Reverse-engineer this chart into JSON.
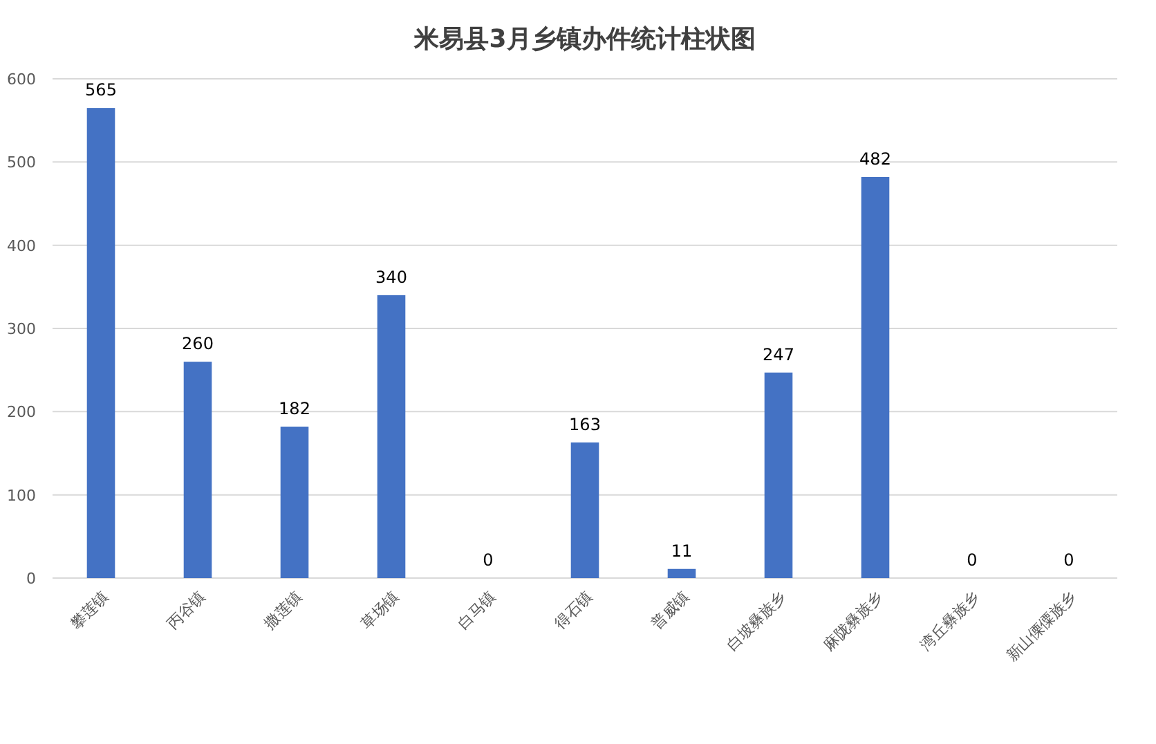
{
  "chart_data": {
    "type": "bar",
    "title": "米易县3月乡镇办件统计柱状图",
    "categories": [
      "攀莲镇",
      "丙谷镇",
      "撒莲镇",
      "草场镇",
      "白马镇",
      "得石镇",
      "普威镇",
      "白坡彝族乡",
      "麻陇彝族乡",
      "湾丘彝族乡",
      "新山傈僳族乡"
    ],
    "values": [
      565,
      260,
      182,
      340,
      0,
      163,
      11,
      247,
      482,
      0,
      0
    ],
    "color": "#4472c4",
    "ylim": [
      0,
      600
    ],
    "yticks": [
      0,
      100,
      200,
      300,
      400,
      500,
      600
    ],
    "grid": "y",
    "data_labels": true
  }
}
